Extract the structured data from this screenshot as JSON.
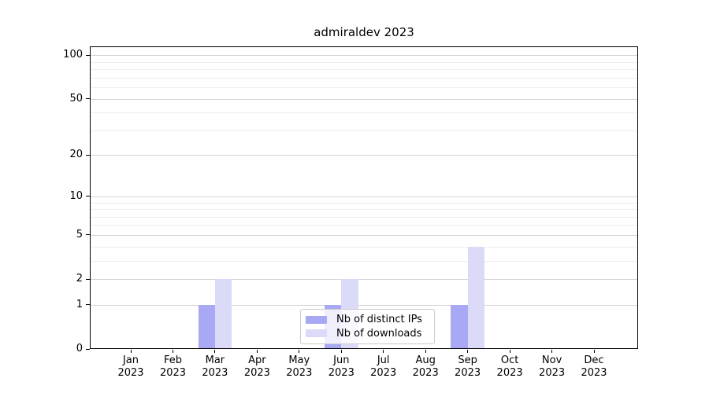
{
  "figure": {
    "background": "#ffffff"
  },
  "chart_data": {
    "type": "bar",
    "title": "admiraldev 2023",
    "categories": [
      "Jan",
      "Feb",
      "Mar",
      "Apr",
      "May",
      "Jun",
      "Jul",
      "Aug",
      "Sep",
      "Oct",
      "Nov",
      "Dec"
    ],
    "x_tick_year": "2023",
    "series": [
      {
        "name": "Nb of distinct IPs",
        "color": "#a8a8f4",
        "values": [
          0,
          0,
          1,
          0,
          0,
          1,
          0,
          0,
          1,
          0,
          0,
          0
        ]
      },
      {
        "name": "Nb of downloads",
        "color": "#dbdbf9",
        "values": [
          0,
          0,
          2,
          0,
          0,
          2,
          0,
          0,
          4,
          0,
          0,
          0
        ]
      }
    ],
    "y_axis": {
      "scale": "log10(value+1)",
      "ticks": [
        0,
        1,
        2,
        5,
        10,
        20,
        50,
        100
      ],
      "tick_labels": [
        "0",
        "1",
        "2",
        "5",
        "10",
        "20",
        "50",
        "100"
      ],
      "minor_ticks": [
        3,
        4,
        6,
        7,
        8,
        9,
        30,
        40,
        60,
        70,
        80,
        90
      ],
      "ylim": [
        0,
        115
      ]
    },
    "xlabel": "",
    "ylabel": "",
    "grid": true,
    "legend": {
      "position": "lower-center",
      "entries": [
        "Nb of distinct IPs",
        "Nb of downloads"
      ]
    }
  },
  "colors": {
    "major_grid": "#d4d4d4",
    "minor_grid": "#eeeeee",
    "spine": "#000000",
    "legend_border": "#cccccc"
  }
}
